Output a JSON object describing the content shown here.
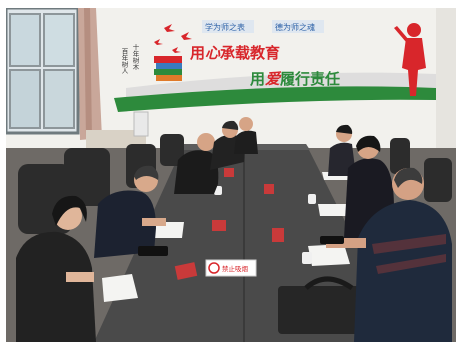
{
  "photo": {
    "subject": "",
    "wall": {
      "tag_left": "学为师之表",
      "tag_right": "德为师之魂",
      "vertical_left": "十年树木",
      "vertical_right": "百年树人",
      "slogan_line1_a": "用",
      "slogan_line1_b": "心",
      "slogan_line1_c": "承载教育",
      "slogan_line2_a": "用",
      "slogan_line2_b": "爱",
      "slogan_line2_c": "履行责任"
    },
    "table_sign": "禁止吸烟",
    "colors": {
      "wall": "#f6f5f1",
      "slogan_red": "#d8262b",
      "slogan_green": "#2d8a3c",
      "table": "#4a4a4a",
      "chair": "#2c2c2c"
    }
  }
}
